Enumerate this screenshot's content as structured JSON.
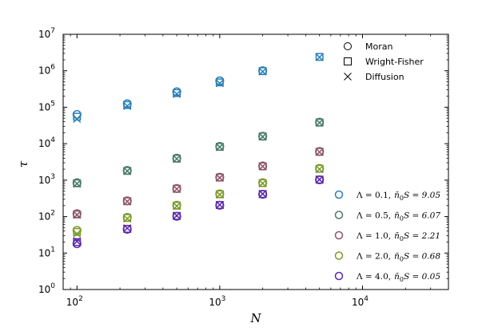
{
  "chart_data": {
    "type": "scatter",
    "title": "",
    "xlabel": "N",
    "ylabel": "τ",
    "xscale": "log",
    "yscale": "log",
    "xlim": [
      80,
      40000
    ],
    "ylim": [
      1,
      10000000
    ],
    "x_ticks": [
      {
        "value": 100,
        "base": "10",
        "exp": "2"
      },
      {
        "value": 1000,
        "base": "10",
        "exp": "3"
      },
      {
        "value": 10000,
        "base": "10",
        "exp": "4"
      }
    ],
    "y_ticks": [
      {
        "value": 1,
        "base": "10",
        "exp": "0"
      },
      {
        "value": 10,
        "base": "10",
        "exp": "1"
      },
      {
        "value": 100,
        "base": "10",
        "exp": "2"
      },
      {
        "value": 1000,
        "base": "10",
        "exp": "3"
      },
      {
        "value": 10000,
        "base": "10",
        "exp": "4"
      },
      {
        "value": 100000,
        "base": "10",
        "exp": "5"
      },
      {
        "value": 1000000,
        "base": "10",
        "exp": "6"
      },
      {
        "value": 10000000,
        "base": "10",
        "exp": "7"
      }
    ],
    "markers_legend": [
      {
        "label": "Moran",
        "marker": "circle"
      },
      {
        "label": "Wright-Fisher",
        "marker": "square"
      },
      {
        "label": "Diffusion",
        "marker": "x"
      }
    ],
    "series": [
      {
        "name": "Λ=0.1, n̄0S=9.05",
        "lambda": "Λ = 0.1,",
        "nbar_s": "n̄",
        "nbar_sub": "0",
        "s_value": "S = 9.05",
        "color": "#2a7fb5",
        "x": [
          100,
          225,
          500,
          1000,
          2000,
          5000
        ],
        "moran": [
          63000,
          125000,
          265000,
          530000,
          1000000,
          null
        ],
        "wright_fisher": [
          55000,
          115000,
          245000,
          480000,
          980000,
          2400000
        ],
        "diffusion": [
          48000,
          108000,
          230000,
          455000,
          950000,
          2350000
        ]
      },
      {
        "name": "Λ=0.5, n̄0S=6.07",
        "lambda": "Λ = 0.5,",
        "nbar_s": "n̄",
        "nbar_sub": "0",
        "s_value": "S = 6.07",
        "color": "#4a7a6a",
        "x": [
          100,
          225,
          500,
          1000,
          2000,
          5000
        ],
        "moran": [
          850,
          1850,
          4000,
          8400,
          16000,
          39000
        ],
        "wright_fisher": [
          820,
          1800,
          3900,
          8200,
          15800,
          38000
        ],
        "diffusion": [
          800,
          1780,
          3850,
          8100,
          15500,
          37500
        ]
      },
      {
        "name": "Λ=1.0, n̄0S=2.21",
        "lambda": "Λ = 1.0,",
        "nbar_s": "n̄",
        "nbar_sub": "0",
        "s_value": "S = 2.21",
        "color": "#8c5468",
        "x": [
          100,
          225,
          500,
          1000,
          2000,
          5000
        ],
        "moran": [
          120,
          270,
          590,
          1200,
          2450,
          6100
        ],
        "wright_fisher": [
          115,
          265,
          580,
          1180,
          2400,
          6000
        ],
        "diffusion": [
          112,
          260,
          570,
          1160,
          2380,
          5900
        ]
      },
      {
        "name": "Λ=2.0, n̄0S=0.68",
        "lambda": "Λ = 2.0,",
        "nbar_s": "n̄",
        "nbar_sub": "0",
        "s_value": "S = 0.68",
        "color": "#7a9a2a",
        "x": [
          100,
          225,
          500,
          1000,
          2000,
          5000
        ],
        "moran": [
          42,
          95,
          205,
          420,
          850,
          2100
        ],
        "wright_fisher": [
          38,
          92,
          200,
          410,
          830,
          2050
        ],
        "diffusion": [
          34,
          88,
          195,
          400,
          815,
          2000
        ]
      },
      {
        "name": "Λ=4.0, n̄0S=0.05",
        "lambda": "Λ = 4.0,",
        "nbar_s": "n̄",
        "nbar_sub": "0",
        "s_value": "S = 0.05",
        "color": "#5b2aa8",
        "x": [
          100,
          225,
          500,
          1000,
          2000,
          5000
        ],
        "moran": [
          18,
          45,
          102,
          205,
          410,
          1020
        ],
        "wright_fisher": [
          20,
          46,
          104,
          208,
          415,
          1030
        ],
        "diffusion": [
          21,
          48,
          106,
          210,
          420,
          1040
        ]
      }
    ]
  }
}
